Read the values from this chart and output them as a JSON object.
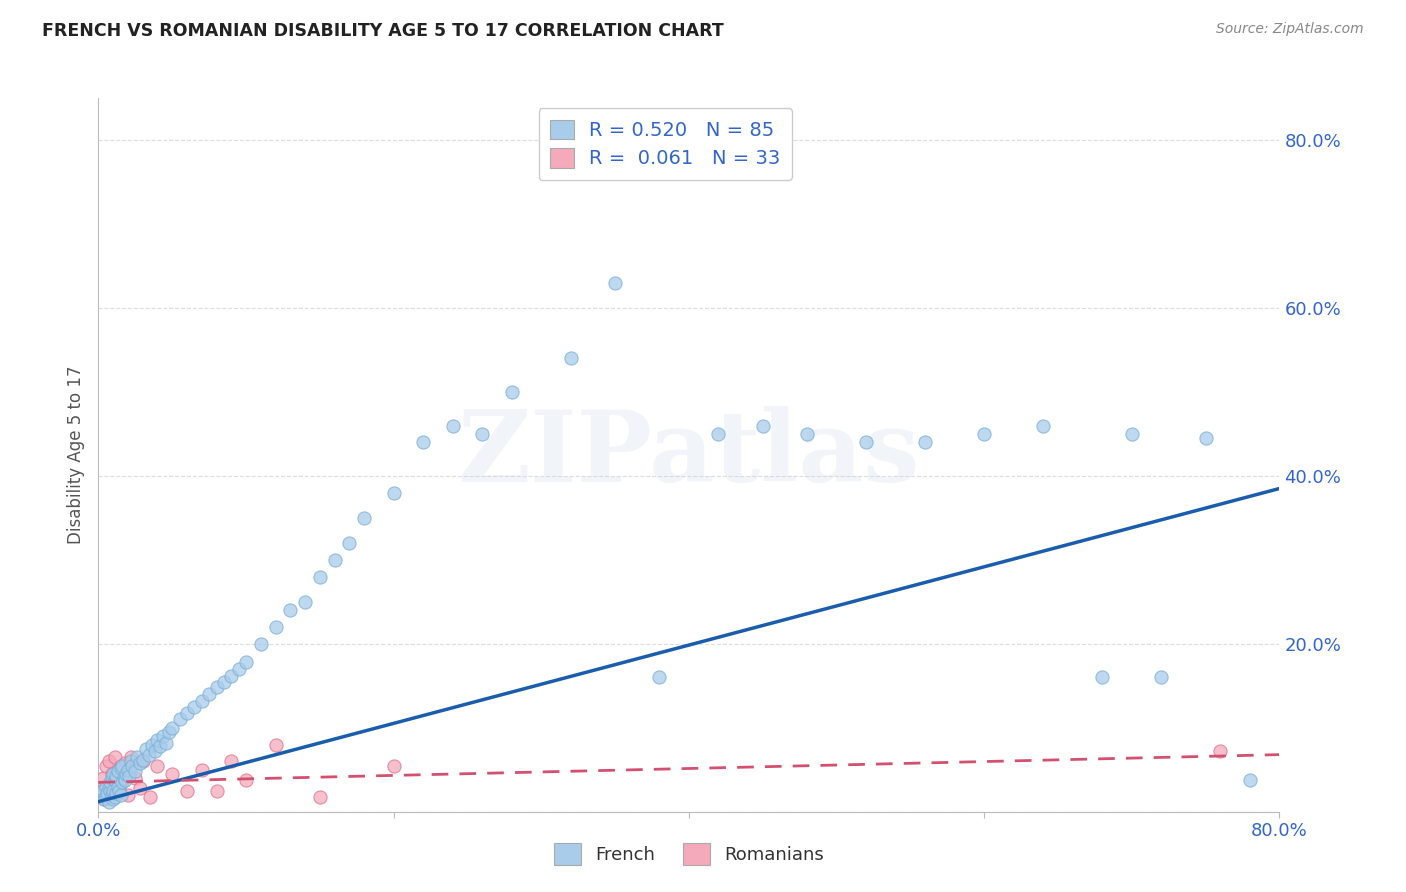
{
  "title": "FRENCH VS ROMANIAN DISABILITY AGE 5 TO 17 CORRELATION CHART",
  "source": "Source: ZipAtlas.com",
  "ylabel": "Disability Age 5 to 17",
  "xlim": [
    0.0,
    0.8
  ],
  "ylim": [
    0.0,
    0.85
  ],
  "french_color": "#A8CCEA",
  "french_edge_color": "#7AAED6",
  "romanian_color": "#F4AABB",
  "romanian_edge_color": "#E07090",
  "french_line_color": "#1A5DAD",
  "romanian_line_color": "#D45070",
  "french_R": 0.52,
  "french_N": 85,
  "romanian_R": 0.061,
  "romanian_N": 33,
  "legend_text_color": "#3366CC",
  "watermark": "ZIPatlas",
  "grid_color": "#DDDDDD",
  "french_x": [
    0.002,
    0.003,
    0.004,
    0.005,
    0.005,
    0.006,
    0.007,
    0.007,
    0.008,
    0.008,
    0.009,
    0.009,
    0.01,
    0.01,
    0.01,
    0.011,
    0.011,
    0.012,
    0.012,
    0.013,
    0.013,
    0.014,
    0.015,
    0.015,
    0.016,
    0.016,
    0.017,
    0.018,
    0.019,
    0.02,
    0.021,
    0.022,
    0.023,
    0.025,
    0.026,
    0.028,
    0.03,
    0.032,
    0.034,
    0.036,
    0.038,
    0.04,
    0.042,
    0.044,
    0.046,
    0.048,
    0.05,
    0.055,
    0.06,
    0.065,
    0.07,
    0.075,
    0.08,
    0.085,
    0.09,
    0.095,
    0.1,
    0.11,
    0.12,
    0.13,
    0.14,
    0.15,
    0.16,
    0.17,
    0.18,
    0.2,
    0.22,
    0.24,
    0.26,
    0.28,
    0.32,
    0.35,
    0.38,
    0.42,
    0.45,
    0.48,
    0.52,
    0.56,
    0.6,
    0.64,
    0.68,
    0.7,
    0.72,
    0.75,
    0.78
  ],
  "french_y": [
    0.02,
    0.025,
    0.015,
    0.018,
    0.03,
    0.022,
    0.028,
    0.012,
    0.025,
    0.035,
    0.02,
    0.04,
    0.015,
    0.025,
    0.045,
    0.018,
    0.038,
    0.022,
    0.042,
    0.03,
    0.048,
    0.025,
    0.02,
    0.052,
    0.035,
    0.055,
    0.04,
    0.038,
    0.045,
    0.05,
    0.042,
    0.06,
    0.055,
    0.048,
    0.065,
    0.058,
    0.062,
    0.075,
    0.068,
    0.08,
    0.072,
    0.085,
    0.078,
    0.09,
    0.082,
    0.095,
    0.1,
    0.11,
    0.118,
    0.125,
    0.132,
    0.14,
    0.148,
    0.155,
    0.162,
    0.17,
    0.178,
    0.2,
    0.22,
    0.24,
    0.25,
    0.28,
    0.3,
    0.32,
    0.35,
    0.38,
    0.44,
    0.46,
    0.45,
    0.5,
    0.54,
    0.63,
    0.16,
    0.45,
    0.46,
    0.45,
    0.44,
    0.44,
    0.45,
    0.46,
    0.16,
    0.45,
    0.16,
    0.445,
    0.038
  ],
  "romanian_x": [
    0.002,
    0.003,
    0.004,
    0.005,
    0.006,
    0.007,
    0.008,
    0.009,
    0.01,
    0.011,
    0.012,
    0.013,
    0.014,
    0.015,
    0.016,
    0.018,
    0.02,
    0.022,
    0.025,
    0.028,
    0.03,
    0.035,
    0.04,
    0.05,
    0.06,
    0.07,
    0.08,
    0.09,
    0.1,
    0.12,
    0.15,
    0.2,
    0.76
  ],
  "romanian_y": [
    0.025,
    0.04,
    0.015,
    0.055,
    0.03,
    0.06,
    0.02,
    0.045,
    0.035,
    0.065,
    0.025,
    0.05,
    0.03,
    0.055,
    0.04,
    0.058,
    0.02,
    0.065,
    0.04,
    0.028,
    0.06,
    0.018,
    0.055,
    0.045,
    0.025,
    0.05,
    0.025,
    0.06,
    0.038,
    0.08,
    0.018,
    0.055,
    0.072
  ],
  "french_line_x": [
    0.0,
    0.8
  ],
  "french_line_y": [
    0.012,
    0.385
  ],
  "romanian_line_x": [
    0.0,
    0.8
  ],
  "romanian_line_y": [
    0.035,
    0.068
  ]
}
